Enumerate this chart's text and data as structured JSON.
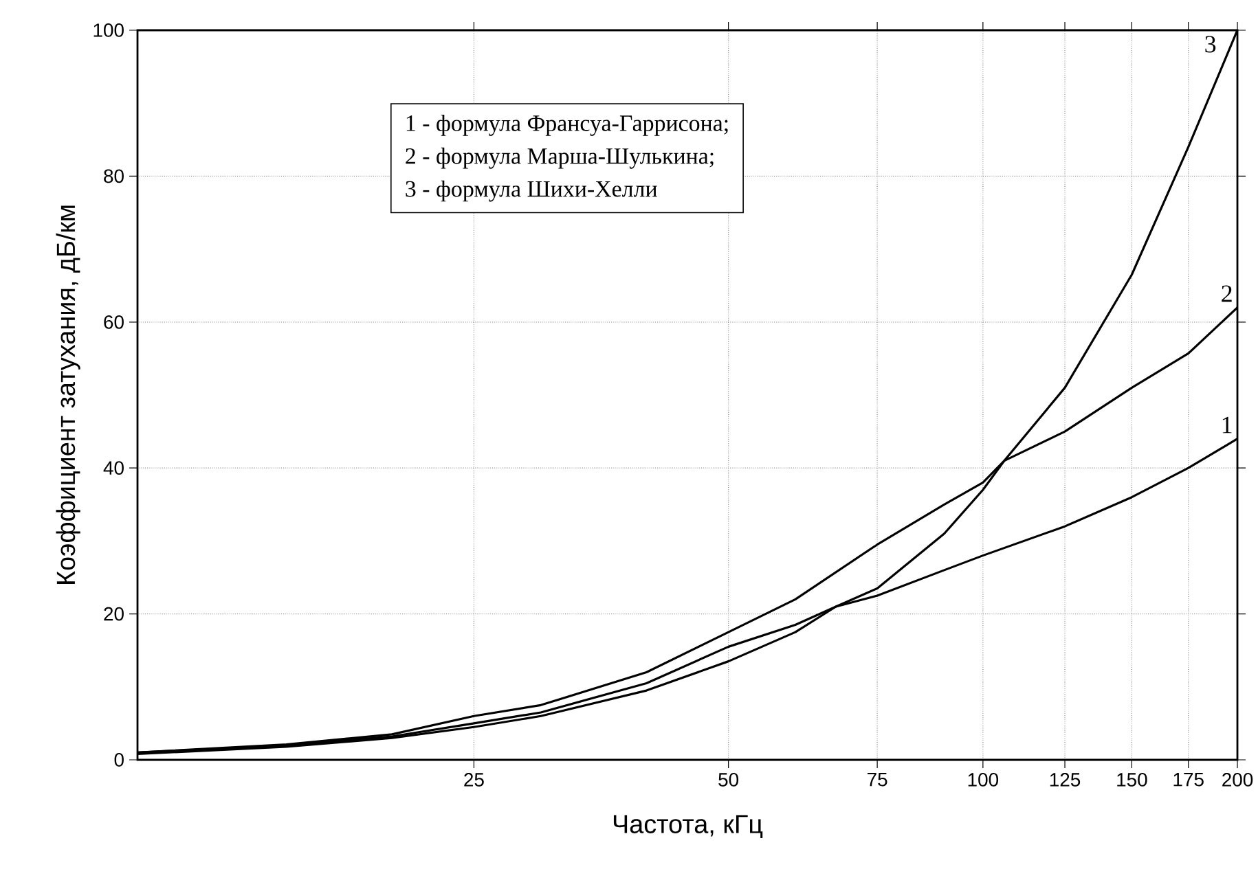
{
  "chart_data": {
    "type": "line",
    "xlabel": "Частота, кГц",
    "ylabel": "Коэффициент затухания, дБ/км",
    "log": "x",
    "xlim": [
      10,
      200
    ],
    "ylim": [
      0,
      100
    ],
    "xticks": [
      25,
      50,
      75,
      100,
      125,
      150,
      175,
      200
    ],
    "yticks": [
      0,
      20,
      40,
      60,
      80,
      100
    ],
    "grid": true,
    "marker": "none",
    "line_style": "solid",
    "annotations": [
      "1 - формула Франсуа-Гаррисона;",
      "2 - формула Марша-Шулькина;",
      "3 - формула Шихи-Хелли"
    ],
    "series": [
      {
        "name": "1",
        "color": "#000000",
        "x": [
          10,
          15,
          20,
          25,
          30,
          40,
          50,
          60,
          67,
          75,
          90,
          100,
          125,
          150,
          175,
          200
        ],
        "values": [
          1,
          2,
          3.2,
          5,
          6.5,
          10.5,
          15.5,
          18.5,
          21,
          22.5,
          26,
          28,
          32,
          36,
          40,
          44
        ]
      },
      {
        "name": "2",
        "color": "#000000",
        "x": [
          10,
          15,
          20,
          25,
          30,
          40,
          50,
          60,
          75,
          90,
          100,
          106,
          125,
          150,
          175,
          200
        ],
        "values": [
          1,
          2.1,
          3.5,
          6,
          7.5,
          12,
          17.5,
          22,
          29.5,
          35,
          38,
          41,
          45,
          51,
          55.7,
          62
        ]
      },
      {
        "name": "3",
        "color": "#000000",
        "x": [
          10,
          15,
          20,
          25,
          30,
          40,
          50,
          60,
          67,
          75,
          90,
          100,
          106,
          125,
          150,
          175,
          200
        ],
        "values": [
          0.8,
          1.8,
          3,
          4.5,
          6,
          9.5,
          13.5,
          17.5,
          21,
          23.5,
          31,
          37,
          41,
          51,
          66.5,
          84,
          100
        ]
      }
    ]
  }
}
